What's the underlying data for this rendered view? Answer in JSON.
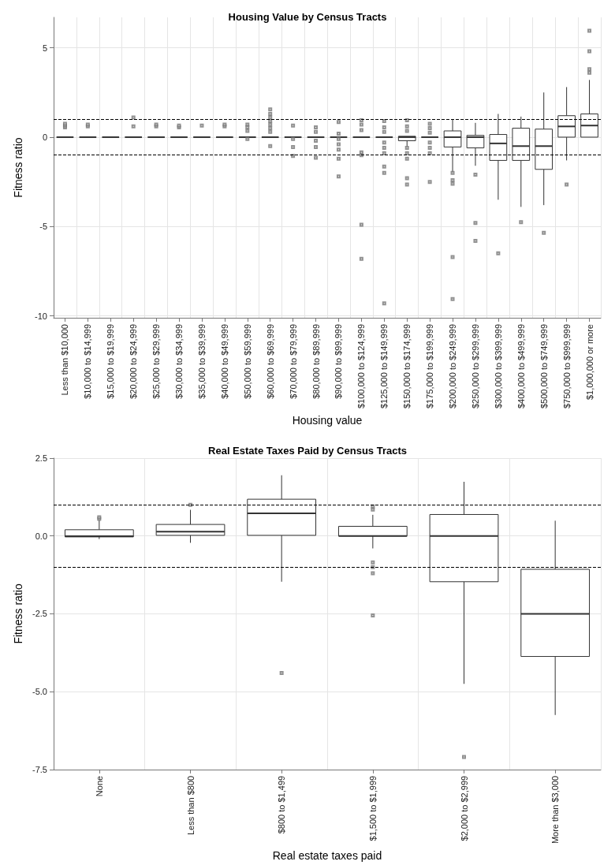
{
  "chart_data": [
    {
      "type": "box",
      "title": "Housing Value by Census Tracts",
      "xlabel": "Housing value",
      "ylabel": "Fitness ratio",
      "grid": true,
      "categories": [
        "Less than $10,000",
        "$10,000 to $14,999",
        "$15,000 to $19,999",
        "$20,000 to $24,999",
        "$25,000 to $29,999",
        "$30,000 to $34,999",
        "$35,000 to $39,999",
        "$40,000 to $49,999",
        "$50,000 to $59,999",
        "$60,000 to $69,999",
        "$70,000 to $79,999",
        "$80,000 to $89,999",
        "$90,000 to $99,999",
        "$100,000 to $124,999",
        "$125,000 to $149,999",
        "$150,000 to $174,999",
        "$175,000 to $199,999",
        "$200,000 to $249,999",
        "$250,000 to $299,999",
        "$300,000 to $399,999",
        "$400,000 to $499,999",
        "$500,000 to $749,999",
        "$750,000 to $999,999",
        "$1,000,000 or more"
      ],
      "ylim": [
        -10.1,
        6.7
      ],
      "yticks": [
        -10,
        -5,
        0,
        5
      ],
      "ref_lines": [
        {
          "axis": "y",
          "value": 1,
          "line_style": "dashed",
          "color": "#000000"
        },
        {
          "axis": "y",
          "value": -1,
          "line_style": "dashed",
          "color": "#000000"
        }
      ],
      "boxes": [
        {
          "low": 0,
          "q1": 0,
          "median": 0,
          "q3": 0,
          "high": 0,
          "outliers": [
            0.55,
            0.65,
            0.75
          ]
        },
        {
          "low": 0,
          "q1": 0,
          "median": 0,
          "q3": 0,
          "high": 0,
          "outliers": [
            0.6,
            0.7
          ]
        },
        {
          "low": 0,
          "q1": 0,
          "median": 0,
          "q3": 0,
          "high": 0
        },
        {
          "low": 0,
          "q1": 0,
          "median": 0,
          "q3": 0,
          "high": 0,
          "outliers": [
            1.1,
            0.6
          ]
        },
        {
          "low": 0,
          "q1": 0,
          "median": 0,
          "q3": 0,
          "high": 0,
          "outliers": [
            0.6,
            0.7
          ]
        },
        {
          "low": 0,
          "q1": 0,
          "median": 0,
          "q3": 0,
          "high": 0,
          "outliers": [
            0.55,
            0.65
          ]
        },
        {
          "low": 0,
          "q1": 0,
          "median": 0,
          "q3": 0,
          "high": 0,
          "outliers": [
            0.65
          ]
        },
        {
          "low": 0,
          "q1": 0,
          "median": 0,
          "q3": 0,
          "high": 0,
          "outliers": [
            0.6,
            0.7
          ]
        },
        {
          "low": 0,
          "q1": 0,
          "median": 0,
          "q3": 0,
          "high": 0,
          "outliers": [
            0.7,
            0.55,
            0.35,
            -0.1
          ]
        },
        {
          "low": 0,
          "q1": 0,
          "median": 0,
          "q3": 0,
          "high": 0,
          "outliers": [
            1.55,
            1.3,
            1.1,
            0.9,
            0.7,
            0.5,
            0.3,
            -0.5
          ]
        },
        {
          "low": 0,
          "q1": 0,
          "median": 0,
          "q3": 0,
          "high": 0,
          "outliers": [
            0.65,
            -0.1,
            -0.55,
            -1.05
          ]
        },
        {
          "low": 0,
          "q1": 0,
          "median": 0,
          "q3": 0,
          "high": 0,
          "outliers": [
            0.55,
            0.3,
            -0.2,
            -0.55,
            -1.15
          ]
        },
        {
          "low": 0,
          "q1": 0,
          "median": 0,
          "q3": 0,
          "high": 0,
          "outliers": [
            0.85,
            0.2,
            -0.1,
            -0.4,
            -0.7,
            -1.2,
            -2.2
          ]
        },
        {
          "low": 0,
          "q1": 0,
          "median": 0,
          "q3": 0,
          "high": 0,
          "outliers": [
            0.95,
            0.7,
            0.4,
            -0.85,
            -1.0,
            -4.9,
            -6.8
          ]
        },
        {
          "low": 0,
          "q1": 0,
          "median": 0,
          "q3": 0,
          "high": 0,
          "outliers": [
            0.9,
            0.55,
            0.3,
            -0.3,
            -0.6,
            -0.9,
            -1.65,
            -2.0,
            -9.3
          ]
        },
        {
          "low": -0.5,
          "q1": -0.2,
          "median": 0,
          "q3": 0.05,
          "high": 0.05,
          "outliers": [
            0.95,
            0.6,
            0.35,
            -0.6,
            -0.9,
            -1.2,
            -2.3,
            -2.65
          ]
        },
        {
          "low": 0,
          "q1": 0,
          "median": 0,
          "q3": 0,
          "high": 0,
          "outliers": [
            0.75,
            0.5,
            0.25,
            -0.3,
            -0.6,
            -0.9,
            -2.5
          ]
        },
        {
          "low": -1.95,
          "q1": -0.55,
          "median": 0,
          "q3": 0.35,
          "high": 1.0,
          "outliers": [
            -2.0,
            -2.4,
            -2.6,
            -6.7,
            -9.05
          ]
        },
        {
          "low": -1.6,
          "q1": -0.6,
          "median": 0,
          "q3": 0.1,
          "high": 0.8,
          "outliers": [
            -2.1,
            -4.8,
            -5.8
          ]
        },
        {
          "low": -3.5,
          "q1": -1.3,
          "median": -0.35,
          "q3": 0.15,
          "high": 1.3,
          "outliers": [
            -6.5
          ]
        },
        {
          "low": -3.9,
          "q1": -1.3,
          "median": -0.5,
          "q3": 0.5,
          "high": 1.15,
          "outliers": [
            -4.75
          ]
        },
        {
          "low": -3.8,
          "q1": -1.8,
          "median": -0.5,
          "q3": 0.45,
          "high": 2.5,
          "outliers": [
            -5.35
          ]
        },
        {
          "low": -1.3,
          "q1": 0,
          "median": 0.6,
          "q3": 1.2,
          "high": 2.8,
          "outliers": [
            -2.65
          ]
        },
        {
          "low": 0,
          "q1": 0,
          "median": 0.65,
          "q3": 1.3,
          "high": 3.2,
          "outliers": [
            5.95,
            4.8,
            3.8,
            3.6
          ]
        }
      ]
    },
    {
      "type": "box",
      "title": "Real Estate Taxes Paid by Census Tracts",
      "xlabel": "Real estate taxes paid",
      "ylabel": "Fitness ratio",
      "grid": true,
      "categories": [
        "None",
        "Less than $800",
        "$800 to $1,499",
        "$1,500 to $1,999",
        "$2,000 to $2,999",
        "More than $3,000"
      ],
      "ylim": [
        -7.5,
        2.5
      ],
      "yticks": [
        -7.5,
        {
          "value": -5,
          "label": "-5.0"
        },
        -2.5,
        {
          "value": 0,
          "label": "0.0"
        },
        2.5
      ],
      "ref_lines": [
        {
          "axis": "y",
          "value": 1,
          "line_style": "dashed",
          "color": "#000000"
        },
        {
          "axis": "y",
          "value": -1,
          "line_style": "dashed",
          "color": "#000000"
        }
      ],
      "boxes": [
        {
          "low": -0.1,
          "q1": -0.03,
          "median": -0.01,
          "q3": 0.2,
          "high": 0.5,
          "outliers": [
            0.55,
            0.6
          ]
        },
        {
          "low": -0.22,
          "q1": 0.02,
          "median": 0.14,
          "q3": 0.37,
          "high": 0.84,
          "outliers": [
            1.0
          ]
        },
        {
          "low": -1.47,
          "q1": 0.02,
          "median": 0.73,
          "q3": 1.18,
          "high": 1.95,
          "outliers": [
            -4.4
          ]
        },
        {
          "low": -0.4,
          "q1": 0,
          "median": 0,
          "q3": 0.31,
          "high": 0.68,
          "outliers": [
            0.95,
            0.85,
            -0.85,
            -1.0,
            -1.2,
            -2.55
          ]
        },
        {
          "low": -4.75,
          "q1": -1.47,
          "median": 0,
          "q3": 0.69,
          "high": 1.74,
          "outliers": [
            -7.1
          ]
        },
        {
          "low": -5.75,
          "q1": -3.87,
          "median": -2.5,
          "q3": -1.07,
          "high": 0.49
        }
      ]
    }
  ]
}
